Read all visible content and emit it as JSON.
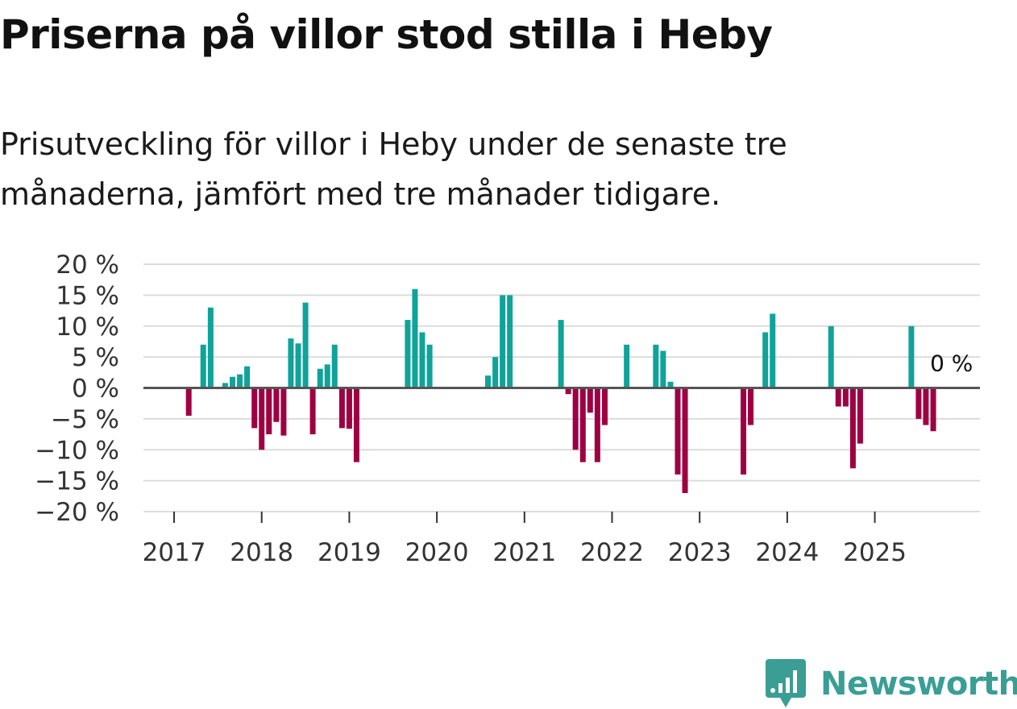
{
  "title": "Priserna på villor stod stilla i Heby",
  "subtitle": "Prisutveckling för villor i Heby under de senaste tre månaderna, jämfört med tre månader tidigare.",
  "brand": {
    "name": "Newsworthy",
    "color": "#3a9e94",
    "icon": "newsworthy-logo-icon"
  },
  "colors": {
    "positive": "#0fa39a",
    "negative": "#9e0042",
    "grid": "#dcdcdc",
    "zero_line": "#555555"
  },
  "chart_data": {
    "type": "bar",
    "unit": "%",
    "ylim": [
      -20,
      20
    ],
    "y_ticks": [
      20,
      15,
      10,
      5,
      0,
      -5,
      -10,
      -15,
      -20
    ],
    "y_tick_labels": [
      "20 %",
      "15 %",
      "10 %",
      "5 %",
      "0 %",
      "−5 %",
      "−10 %",
      "−15 %",
      "−20 %"
    ],
    "x_ticks": [
      2017,
      2018,
      2019,
      2020,
      2021,
      2022,
      2023,
      2024,
      2025
    ],
    "x_tick_labels": [
      "2017",
      "2018",
      "2019",
      "2020",
      "2021",
      "2022",
      "2023",
      "2024",
      "2025"
    ],
    "x_range": [
      2016.65,
      2026.2
    ],
    "last_value_label": "0 %",
    "series": [
      {
        "name": "Prisutveckling",
        "points": [
          {
            "t": 2017.167,
            "v": -4.5
          },
          {
            "t": 2017.333,
            "v": 7
          },
          {
            "t": 2017.417,
            "v": 13
          },
          {
            "t": 2017.583,
            "v": 0.8
          },
          {
            "t": 2017.667,
            "v": 1.8
          },
          {
            "t": 2017.75,
            "v": 2.2
          },
          {
            "t": 2017.833,
            "v": 3.5
          },
          {
            "t": 2017.917,
            "v": -6.5
          },
          {
            "t": 2018.0,
            "v": -10
          },
          {
            "t": 2018.083,
            "v": -7.5
          },
          {
            "t": 2018.167,
            "v": -5.5
          },
          {
            "t": 2018.25,
            "v": -7.7
          },
          {
            "t": 2018.333,
            "v": 8
          },
          {
            "t": 2018.417,
            "v": 7.2
          },
          {
            "t": 2018.5,
            "v": 13.8
          },
          {
            "t": 2018.583,
            "v": -7.5
          },
          {
            "t": 2018.667,
            "v": 3.1
          },
          {
            "t": 2018.75,
            "v": 3.8
          },
          {
            "t": 2018.833,
            "v": 7
          },
          {
            "t": 2018.917,
            "v": -6.5
          },
          {
            "t": 2019.0,
            "v": -6.6
          },
          {
            "t": 2019.083,
            "v": -12
          },
          {
            "t": 2019.667,
            "v": 11
          },
          {
            "t": 2019.75,
            "v": 16
          },
          {
            "t": 2019.833,
            "v": 9
          },
          {
            "t": 2019.917,
            "v": 7
          },
          {
            "t": 2020.583,
            "v": 2
          },
          {
            "t": 2020.667,
            "v": 5
          },
          {
            "t": 2020.75,
            "v": 15
          },
          {
            "t": 2020.833,
            "v": 15
          },
          {
            "t": 2021.417,
            "v": 11
          },
          {
            "t": 2021.5,
            "v": -1
          },
          {
            "t": 2021.583,
            "v": -10
          },
          {
            "t": 2021.667,
            "v": -12
          },
          {
            "t": 2021.75,
            "v": -4
          },
          {
            "t": 2021.833,
            "v": -12
          },
          {
            "t": 2021.917,
            "v": -6
          },
          {
            "t": 2022.167,
            "v": 7
          },
          {
            "t": 2022.5,
            "v": 7
          },
          {
            "t": 2022.583,
            "v": 6
          },
          {
            "t": 2022.667,
            "v": 1
          },
          {
            "t": 2022.75,
            "v": -14
          },
          {
            "t": 2022.833,
            "v": -17
          },
          {
            "t": 2023.5,
            "v": -14
          },
          {
            "t": 2023.583,
            "v": -6
          },
          {
            "t": 2023.75,
            "v": 9
          },
          {
            "t": 2023.833,
            "v": 12
          },
          {
            "t": 2024.5,
            "v": 10
          },
          {
            "t": 2024.583,
            "v": -3
          },
          {
            "t": 2024.667,
            "v": -3
          },
          {
            "t": 2024.75,
            "v": -13
          },
          {
            "t": 2024.833,
            "v": -9
          },
          {
            "t": 2025.417,
            "v": 10
          },
          {
            "t": 2025.5,
            "v": -5
          },
          {
            "t": 2025.583,
            "v": -6
          },
          {
            "t": 2025.667,
            "v": -7
          },
          {
            "t": 2025.75,
            "v": 0
          }
        ]
      }
    ]
  }
}
